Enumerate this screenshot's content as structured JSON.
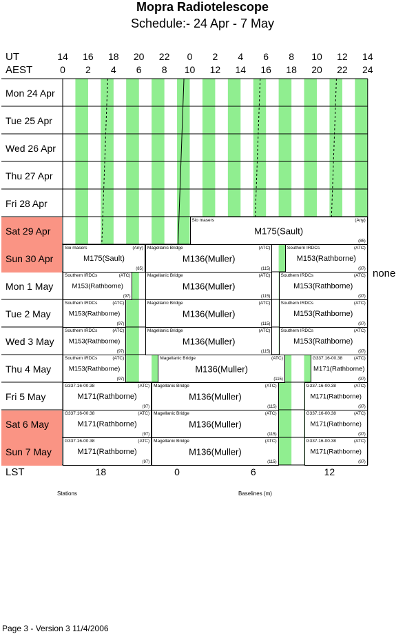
{
  "title": "Mopra Radiotelescope",
  "subtitle": "Schedule:- 24 Apr - 7  May",
  "axis": {
    "ut_label": "UT",
    "aest_label": "AEST",
    "ut_ticks": [
      "14",
      "16",
      "18",
      "20",
      "22",
      "0",
      "2",
      "4",
      "6",
      "8",
      "10",
      "12",
      "14"
    ],
    "aest_ticks": [
      "0",
      "2",
      "4",
      "6",
      "8",
      "10",
      "12",
      "14",
      "16",
      "18",
      "20",
      "22",
      "24"
    ],
    "lst_label": "LST",
    "lst_ticks": [
      "18",
      "0",
      "6",
      "12"
    ]
  },
  "days": [
    {
      "label": "Mon   24 Apr",
      "weekend": false
    },
    {
      "label": "Tue   25 Apr",
      "weekend": false
    },
    {
      "label": "Wed   26 Apr",
      "weekend": false
    },
    {
      "label": "Thu   27 Apr",
      "weekend": false
    },
    {
      "label": "Fri    28 Apr",
      "weekend": false
    },
    {
      "label": "Sat    29 Apr",
      "weekend": true
    },
    {
      "label": "Sun   30 Apr",
      "weekend": true
    },
    {
      "label": "Mon   1  May",
      "weekend": false
    },
    {
      "label": "Tue   2  May",
      "weekend": false
    },
    {
      "label": "Wed   3  May",
      "weekend": false
    },
    {
      "label": "Thu   4  May",
      "weekend": false
    },
    {
      "label": "Fri    5  May",
      "weekend": false
    },
    {
      "label": "Sat    6  May",
      "weekend": true
    },
    {
      "label": "Sun   7  May",
      "weekend": true
    }
  ],
  "blocks": [
    {
      "day": 5,
      "start": "10:00",
      "end": "24:00",
      "tl": "Sio masers",
      "tr": "(Any)",
      "main": "M175(Sault)",
      "br": "(85)"
    },
    {
      "day": 6,
      "start": "0:00",
      "end": "6:30",
      "tl": "Sio masers",
      "tr": "(Any)",
      "main": "M175(Sault)",
      "br": "(85)"
    },
    {
      "day": 6,
      "start": "6:30",
      "end": "16:30",
      "tl": "Magellanic Bridge",
      "tr": "(ATC)",
      "main": "M136(Muller)",
      "br": "(115)"
    },
    {
      "day": 6,
      "start": "17:30",
      "end": "24:00",
      "tl": "Southern IRDCs",
      "tr": "(ATC)",
      "main": "M153(Rathborne)",
      "br": "(97)"
    },
    {
      "day": 7,
      "start": "0:00",
      "end": "5:30",
      "tl": "Southern IRDCs",
      "tr": "(ATC)",
      "main": "M153(Rathborne)",
      "br": "(97)"
    },
    {
      "day": 7,
      "start": "6:30",
      "end": "16:30",
      "tl": "Magellanic Bridge",
      "tr": "(ATC)",
      "main": "M136(Muller)",
      "br": "(115)"
    },
    {
      "day": 7,
      "start": "17:00",
      "end": "24:00",
      "tl": "Southern IRDCs",
      "tr": "(ATC)",
      "main": "M153(Rathborne)",
      "br": "(97)"
    },
    {
      "day": 8,
      "start": "0:00",
      "end": "5:00",
      "tl": "Southern IRDCs",
      "tr": "(ATC)",
      "main": "M153(Rathborne)",
      "br": "(97)"
    },
    {
      "day": 8,
      "start": "6:30",
      "end": "16:30",
      "tl": "Magellanic Bridge",
      "tr": "(ATC)",
      "main": "M136(Muller)",
      "br": "(115)"
    },
    {
      "day": 8,
      "start": "17:00",
      "end": "24:00",
      "tl": "Southern IRDCs",
      "tr": "(ATC)",
      "main": "M153(Rathborne)",
      "br": "(97)"
    },
    {
      "day": 9,
      "start": "0:00",
      "end": "5:00",
      "tl": "Southern IRDCs",
      "tr": "(ATC)",
      "main": "M153(Rathborne)",
      "br": "(97)"
    },
    {
      "day": 9,
      "start": "6:30",
      "end": "16:30",
      "tl": "Magellanic Bridge",
      "tr": "(ATC)",
      "main": "M136(Muller)",
      "br": "(115)"
    },
    {
      "day": 9,
      "start": "17:00",
      "end": "24:00",
      "tl": "Southern IRDCs",
      "tr": "(ATC)",
      "main": "M153(Rathborne)",
      "br": "(97)"
    },
    {
      "day": 10,
      "start": "0:00",
      "end": "5:00",
      "tl": "Southern IRDCs",
      "tr": "(ATC)",
      "main": "M153(Rathborne)",
      "br": "(97)"
    },
    {
      "day": 10,
      "start": "7:30",
      "end": "17:30",
      "tl": "Magellanic Bridge",
      "tr": "(ATC)",
      "main": "M136(Muller)",
      "br": "(115)"
    },
    {
      "day": 10,
      "start": "19:30",
      "end": "24:00",
      "tl": "G337.16-00.38",
      "tr": "(ATC)",
      "main": "M171(Rathborne)",
      "br": "(97)"
    },
    {
      "day": 11,
      "start": "0:00",
      "end": "7:00",
      "tl": "G337.16-00.38",
      "tr": "(ATC)",
      "main": "M171(Rathborne)",
      "br": "(97)"
    },
    {
      "day": 11,
      "start": "7:00",
      "end": "17:00",
      "tl": "Magellanic Bridge",
      "tr": "(ATC)",
      "main": "M136(Muller)",
      "br": "(115)"
    },
    {
      "day": 11,
      "start": "19:00",
      "end": "24:00",
      "tl": "G337.16-00.38",
      "tr": "(ATC)",
      "main": "M171(Rathborne)",
      "br": "(97)"
    },
    {
      "day": 12,
      "start": "0:00",
      "end": "7:00",
      "tl": "G337.16-00.38",
      "tr": "(ATC)",
      "main": "M171(Rathborne)",
      "br": "(97)"
    },
    {
      "day": 12,
      "start": "7:00",
      "end": "17:00",
      "tl": "Magellanic Bridge",
      "tr": "(ATC)",
      "main": "M136(Muller)",
      "br": "(115)"
    },
    {
      "day": 12,
      "start": "19:00",
      "end": "24:00",
      "tl": "G337.16-00.38",
      "tr": "(ATC)",
      "main": "M171(Rathborne)",
      "br": "(97)"
    },
    {
      "day": 13,
      "start": "0:00",
      "end": "7:00",
      "tl": "G337.16-00.38",
      "tr": "(ATC)",
      "main": "M171(Rathborne)",
      "br": "(97)"
    },
    {
      "day": 13,
      "start": "7:00",
      "end": "17:00",
      "tl": "Magellanic Bridge",
      "tr": "(ATC)",
      "main": "M136(Muller)",
      "br": "(115)"
    },
    {
      "day": 13,
      "start": "19:00",
      "end": "24:00",
      "tl": "G337.16-00.38",
      "tr": "(ATC)",
      "main": "M171(Rathborne)",
      "br": "(97)"
    }
  ],
  "side_note": "none",
  "stations_label": "Stations",
  "baselines_label": "Baselines (m)",
  "footer": "Page 3 - Version 3  11/4/2006",
  "colors": {
    "daytime": "#90ee90",
    "nighttime": "#d3d3d3",
    "weekend": "#fa9484"
  }
}
